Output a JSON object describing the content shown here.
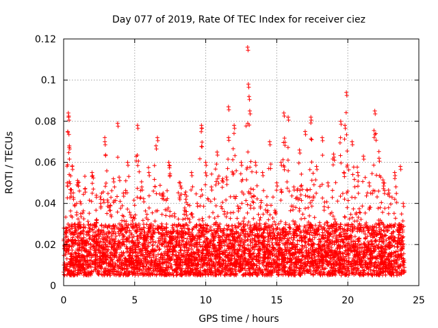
{
  "chart_data": {
    "type": "scatter",
    "title": "Day 077 of 2019, Rate Of TEC Index for receiver ciez",
    "xlabel": "GPS time / hours",
    "ylabel": "ROTI / TECUs",
    "xlim": [
      0,
      25
    ],
    "ylim": [
      0,
      0.12
    ],
    "x_ticks": [
      0,
      5,
      10,
      15,
      20,
      25
    ],
    "x_tick_labels": [
      "0",
      "5",
      "10",
      "15",
      "20",
      "25"
    ],
    "y_ticks": [
      0,
      0.02,
      0.04,
      0.06,
      0.08,
      0.1,
      0.12
    ],
    "y_tick_labels": [
      "0",
      "0.02",
      "0.04",
      "0.06",
      "0.08",
      "0.1",
      "0.12"
    ],
    "grid": true,
    "marker": "+",
    "series": [
      {
        "name": "ROTI",
        "color": "#ff0000",
        "x": [
          0.1,
          0.25,
          0.33,
          0.35,
          0.4,
          0.5,
          0.6,
          0.8,
          1.0,
          1.2,
          1.5,
          1.8,
          2.0,
          2.3,
          2.6,
          2.9,
          3.2,
          3.5,
          3.8,
          4.2,
          4.5,
          4.9,
          5.2,
          5.5,
          6.0,
          6.5,
          6.6,
          7.0,
          7.4,
          7.8,
          8.2,
          8.6,
          9.0,
          9.4,
          9.7,
          10.0,
          10.4,
          10.8,
          11.2,
          11.6,
          12.0,
          12.5,
          12.95,
          13.0,
          13.05,
          13.1,
          13.5,
          14.0,
          14.5,
          15.0,
          15.3,
          15.5,
          15.8,
          16.2,
          16.6,
          17.0,
          17.4,
          17.8,
          18.2,
          18.6,
          19.0,
          19.5,
          19.8,
          19.9,
          20.3,
          20.7,
          21.1,
          21.5,
          21.9,
          22.2,
          22.5,
          22.9,
          23.3,
          23.7,
          23.9
        ],
        "y": [
          0.025,
          0.05,
          0.084,
          0.082,
          0.068,
          0.045,
          0.058,
          0.03,
          0.05,
          0.035,
          0.047,
          0.028,
          0.055,
          0.032,
          0.04,
          0.07,
          0.038,
          0.052,
          0.079,
          0.045,
          0.06,
          0.03,
          0.078,
          0.048,
          0.055,
          0.068,
          0.072,
          0.045,
          0.06,
          0.035,
          0.05,
          0.042,
          0.055,
          0.04,
          0.078,
          0.06,
          0.048,
          0.065,
          0.052,
          0.087,
          0.078,
          0.06,
          0.116,
          0.098,
          0.092,
          0.085,
          0.06,
          0.055,
          0.07,
          0.05,
          0.06,
          0.084,
          0.082,
          0.048,
          0.066,
          0.075,
          0.082,
          0.058,
          0.072,
          0.05,
          0.064,
          0.08,
          0.078,
          0.094,
          0.07,
          0.055,
          0.063,
          0.05,
          0.085,
          0.062,
          0.05,
          0.045,
          0.055,
          0.058,
          0.04
        ],
        "baseline_band": [
          0.005,
          0.03
        ]
      }
    ]
  }
}
